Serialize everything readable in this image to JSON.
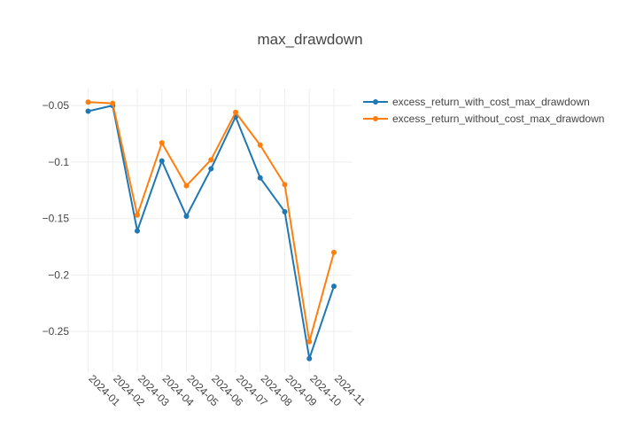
{
  "chart_data": {
    "type": "line",
    "title": "max_drawdown",
    "categories": [
      "2024-01",
      "2024-02",
      "2024-03",
      "2024-04",
      "2024-05",
      "2024-06",
      "2024-07",
      "2024-08",
      "2024-09",
      "2024-10",
      "2024-11"
    ],
    "series": [
      {
        "name": "excess_return_with_cost_max_drawdown",
        "color": "#1f77b4",
        "values": [
          -0.055,
          -0.05,
          -0.161,
          -0.099,
          -0.148,
          -0.106,
          -0.06,
          -0.114,
          -0.144,
          -0.274,
          -0.21
        ]
      },
      {
        "name": "excess_return_without_cost_max_drawdown",
        "color": "#ff7f0e",
        "values": [
          -0.047,
          -0.048,
          -0.147,
          -0.083,
          -0.121,
          -0.098,
          -0.056,
          -0.085,
          -0.12,
          -0.259,
          -0.18
        ]
      }
    ],
    "yticks": [
      -0.05,
      -0.1,
      -0.15,
      -0.2,
      -0.25
    ],
    "ytick_labels": [
      "−0.05",
      "−0.1",
      "−0.15",
      "−0.2",
      "−0.25"
    ],
    "ylim": [
      -0.286,
      -0.035
    ],
    "grid": true,
    "legend_position": "top-right"
  }
}
